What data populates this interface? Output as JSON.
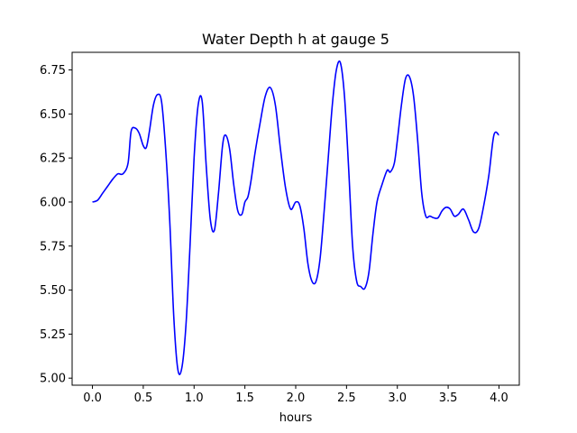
{
  "chart_data": {
    "type": "line",
    "title": "Water Depth h at gauge 5",
    "xlabel": "hours",
    "ylabel": "",
    "xlim": [
      -0.2,
      4.2
    ],
    "ylim": [
      4.96,
      6.85
    ],
    "xticks": [
      0.0,
      0.5,
      1.0,
      1.5,
      2.0,
      2.5,
      3.0,
      3.5,
      4.0
    ],
    "xtick_labels": [
      "0.0",
      "0.5",
      "1.0",
      "1.5",
      "2.0",
      "2.5",
      "3.0",
      "3.5",
      "4.0"
    ],
    "yticks": [
      5.0,
      5.25,
      5.5,
      5.75,
      6.0,
      6.25,
      6.5,
      6.75
    ],
    "ytick_labels": [
      "5.00",
      "5.25",
      "5.50",
      "5.75",
      "6.00",
      "6.25",
      "6.50",
      "6.75"
    ],
    "grid": false,
    "series": [
      {
        "color": "#0000ff",
        "x": [
          0.0,
          0.05,
          0.1,
          0.15,
          0.2,
          0.25,
          0.3,
          0.35,
          0.38,
          0.42,
          0.46,
          0.5,
          0.53,
          0.56,
          0.6,
          0.64,
          0.68,
          0.72,
          0.76,
          0.8,
          0.84,
          0.88,
          0.92,
          0.96,
          1.0,
          1.04,
          1.08,
          1.12,
          1.16,
          1.2,
          1.24,
          1.28,
          1.31,
          1.35,
          1.39,
          1.43,
          1.47,
          1.5,
          1.53,
          1.56,
          1.6,
          1.65,
          1.7,
          1.75,
          1.8,
          1.85,
          1.9,
          1.95,
          2.0,
          2.04,
          2.08,
          2.12,
          2.16,
          2.2,
          2.24,
          2.28,
          2.32,
          2.36,
          2.4,
          2.44,
          2.48,
          2.52,
          2.56,
          2.6,
          2.64,
          2.68,
          2.72,
          2.76,
          2.8,
          2.85,
          2.9,
          2.93,
          2.97,
          3.0,
          3.04,
          3.08,
          3.12,
          3.16,
          3.2,
          3.24,
          3.28,
          3.32,
          3.36,
          3.4,
          3.44,
          3.48,
          3.52,
          3.56,
          3.6,
          3.65,
          3.7,
          3.75,
          3.8,
          3.85,
          3.9,
          3.95,
          4.0
        ],
        "y": [
          6.0,
          6.01,
          6.05,
          6.09,
          6.13,
          6.16,
          6.16,
          6.22,
          6.4,
          6.42,
          6.39,
          6.32,
          6.31,
          6.4,
          6.55,
          6.61,
          6.57,
          6.3,
          5.9,
          5.35,
          5.05,
          5.06,
          5.3,
          5.75,
          6.25,
          6.55,
          6.57,
          6.2,
          5.9,
          5.84,
          6.05,
          6.32,
          6.38,
          6.3,
          6.1,
          5.95,
          5.93,
          6.0,
          6.03,
          6.12,
          6.28,
          6.45,
          6.6,
          6.65,
          6.55,
          6.3,
          6.08,
          5.96,
          6.0,
          5.98,
          5.85,
          5.65,
          5.55,
          5.55,
          5.68,
          5.95,
          6.25,
          6.55,
          6.75,
          6.79,
          6.6,
          6.2,
          5.75,
          5.55,
          5.52,
          5.51,
          5.6,
          5.82,
          6.0,
          6.1,
          6.18,
          6.17,
          6.22,
          6.35,
          6.55,
          6.7,
          6.71,
          6.6,
          6.35,
          6.05,
          5.92,
          5.92,
          5.91,
          5.91,
          5.95,
          5.97,
          5.96,
          5.92,
          5.93,
          5.96,
          5.9,
          5.83,
          5.85,
          5.98,
          6.15,
          6.38,
          6.38
        ]
      }
    ]
  }
}
